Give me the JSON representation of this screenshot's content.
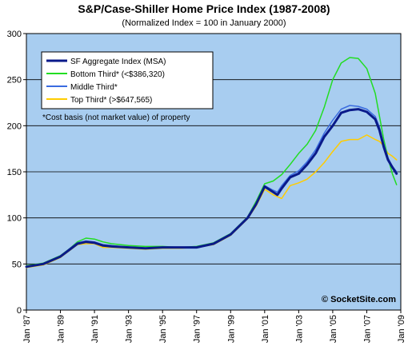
{
  "chart_data": {
    "type": "line",
    "title": "S&P/Case-Shiller Home Price Index (1987-2008)",
    "subtitle": "(Normalized Index = 100 in January 2000)",
    "xlabel": "",
    "ylabel": "",
    "xlim": [
      1987.0,
      2009.0
    ],
    "ylim": [
      0,
      300
    ],
    "yticks": [
      0,
      50,
      100,
      150,
      200,
      250,
      300
    ],
    "xticks": [
      {
        "year": 1987,
        "label": "Jan '87"
      },
      {
        "year": 1989,
        "label": "Jan '89"
      },
      {
        "year": 1991,
        "label": "Jan '91"
      },
      {
        "year": 1993,
        "label": "Jan '93"
      },
      {
        "year": 1995,
        "label": "Jan '95"
      },
      {
        "year": 1997,
        "label": "Jan '97"
      },
      {
        "year": 1999,
        "label": "Jan '99"
      },
      {
        "year": 2001,
        "label": "Jan '01"
      },
      {
        "year": 2003,
        "label": "Jan '03"
      },
      {
        "year": 2005,
        "label": "Jan '05"
      },
      {
        "year": 2007,
        "label": "Jan '07"
      },
      {
        "year": 2009,
        "label": "Jan '09"
      }
    ],
    "grid": "horizontal",
    "plot_background": "#a8cdf0",
    "legend_position": "top-left",
    "annotation": "*Cost basis (not market value) of property",
    "watermark": "© SocketSite.com",
    "series": [
      {
        "name": "SF Aggregate Index (MSA)",
        "color": "#0a1a8a",
        "stroke_width": 3,
        "x": [
          1987.0,
          1988.0,
          1989.0,
          1989.5,
          1990.0,
          1990.5,
          1991.0,
          1991.5,
          1992.0,
          1993.0,
          1994.0,
          1995.0,
          1996.0,
          1997.0,
          1998.0,
          1999.0,
          2000.0,
          2000.5,
          2001.0,
          2001.5,
          2001.75,
          2002.0,
          2002.5,
          2003.0,
          2003.5,
          2004.0,
          2004.5,
          2005.0,
          2005.5,
          2006.0,
          2006.5,
          2007.0,
          2007.5,
          2007.75,
          2008.0,
          2008.25,
          2008.5,
          2008.75
        ],
        "values": [
          47,
          50,
          58,
          65,
          72,
          74,
          73,
          70,
          69,
          68,
          67,
          68,
          68,
          68,
          72,
          82,
          100,
          115,
          134,
          128,
          125,
          132,
          144,
          148,
          158,
          170,
          188,
          200,
          214,
          217,
          218,
          215,
          207,
          195,
          177,
          163,
          155,
          148
        ]
      },
      {
        "name": "Bottom Third* (<$386,320)",
        "color": "#22dd22",
        "stroke_width": 1.5,
        "x": [
          1987.0,
          1988.0,
          1989.0,
          1989.5,
          1990.0,
          1990.5,
          1991.0,
          1991.5,
          1992.0,
          1993.0,
          1994.0,
          1995.0,
          1996.0,
          1997.0,
          1998.0,
          1999.0,
          2000.0,
          2000.5,
          2001.0,
          2001.5,
          2002.0,
          2002.5,
          2003.0,
          2003.5,
          2004.0,
          2004.5,
          2005.0,
          2005.5,
          2006.0,
          2006.5,
          2007.0,
          2007.5,
          2007.75,
          2008.0,
          2008.25,
          2008.5,
          2008.75
        ],
        "values": [
          48,
          51,
          59,
          66,
          74,
          78,
          77,
          74,
          72,
          70,
          69,
          69,
          68,
          69,
          73,
          83,
          101,
          118,
          137,
          140,
          147,
          158,
          170,
          180,
          195,
          220,
          250,
          268,
          274,
          273,
          262,
          235,
          210,
          185,
          165,
          148,
          136
        ]
      },
      {
        "name": "Middle Third*",
        "color": "#3a6be0",
        "stroke_width": 1.5,
        "x": [
          1987.0,
          1988.0,
          1989.0,
          1989.5,
          1990.0,
          1990.5,
          1991.0,
          1991.5,
          1992.0,
          1993.0,
          1994.0,
          1995.0,
          1996.0,
          1997.0,
          1998.0,
          1999.0,
          2000.0,
          2000.5,
          2001.0,
          2001.5,
          2001.75,
          2002.0,
          2002.5,
          2003.0,
          2003.5,
          2004.0,
          2004.5,
          2005.0,
          2005.5,
          2006.0,
          2006.5,
          2007.0,
          2007.5,
          2007.75,
          2008.0,
          2008.25,
          2008.5,
          2008.75
        ],
        "values": [
          47,
          50,
          58,
          66,
          73,
          75,
          74,
          71,
          70,
          68,
          67,
          68,
          68,
          68,
          72,
          82,
          100,
          116,
          135,
          130,
          128,
          135,
          146,
          151,
          161,
          174,
          192,
          206,
          218,
          222,
          221,
          218,
          210,
          198,
          180,
          165,
          156,
          150
        ]
      },
      {
        "name": "Top Third* (>$647,565)",
        "color": "#ffcc00",
        "stroke_width": 1.5,
        "x": [
          1987.0,
          1988.0,
          1989.0,
          1989.5,
          1990.0,
          1990.5,
          1991.0,
          1991.5,
          1992.0,
          1993.0,
          1994.0,
          1995.0,
          1996.0,
          1997.0,
          1998.0,
          1999.0,
          2000.0,
          2000.5,
          2001.0,
          2001.5,
          2002.0,
          2002.5,
          2003.0,
          2003.5,
          2004.0,
          2004.5,
          2005.0,
          2005.5,
          2006.0,
          2006.5,
          2007.0,
          2007.5,
          2007.75,
          2008.0,
          2008.25,
          2008.5,
          2008.75
        ],
        "values": [
          46,
          49,
          57,
          64,
          71,
          72,
          72,
          68,
          68,
          67,
          66,
          67,
          67,
          68,
          71,
          81,
          99,
          113,
          131,
          125,
          121,
          135,
          138,
          142,
          150,
          160,
          172,
          183,
          185,
          185,
          190,
          185,
          183,
          178,
          170,
          167,
          163
        ]
      }
    ]
  }
}
